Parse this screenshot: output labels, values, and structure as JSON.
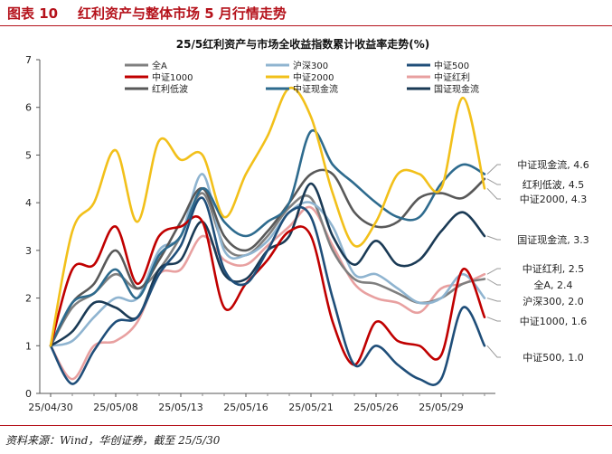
{
  "header": {
    "figure_number": "图表 10",
    "figure_title": "红利资产与整体市场 5 月行情走势"
  },
  "footer": {
    "source": "资料来源：Wind，华创证券，截至 25/5/30"
  },
  "colors": {
    "brand": "#b5121b",
    "series": [
      "#7f7f7f",
      "#8fb4d0",
      "#1f4e79",
      "#c00000",
      "#f2c01a",
      "#e8a0a0",
      "#595959",
      "#2e6b8e",
      "#1a3a55"
    ]
  },
  "chart_data": {
    "type": "line",
    "title": "25/5红利资产与市场全收益指数累计收益率走势(%)",
    "xlabel": "",
    "ylabel": "",
    "ylim": [
      0,
      7
    ],
    "yticks": [
      "0",
      "1",
      "2",
      "3",
      "4",
      "5",
      "6",
      "7"
    ],
    "xticks": [
      "25/04/30",
      "25/05/08",
      "25/05/13",
      "25/05/16",
      "25/05/21",
      "25/05/26",
      "25/05/29"
    ],
    "legend_position": "top",
    "series": [
      {
        "name": "全A",
        "end_label": "全A, 2.4",
        "x": [
          0,
          1,
          2,
          3,
          4,
          5,
          6,
          7,
          8,
          9,
          10,
          11,
          12,
          13,
          14,
          15,
          16,
          17,
          18,
          19,
          20
        ],
        "values": [
          1.0,
          1.8,
          2.1,
          2.5,
          2.2,
          2.6,
          3.3,
          4.2,
          3.1,
          2.9,
          3.3,
          3.9,
          4.1,
          3.0,
          2.4,
          2.3,
          2.1,
          1.9,
          2.0,
          2.3,
          2.4
        ]
      },
      {
        "name": "沪深300",
        "end_label": "沪深300, 2.0",
        "x": [
          0,
          1,
          2,
          3,
          4,
          5,
          6,
          7,
          8,
          9,
          10,
          11,
          12,
          13,
          14,
          15,
          16,
          17,
          18,
          19,
          20
        ],
        "values": [
          1.0,
          1.1,
          1.6,
          2.0,
          2.0,
          3.0,
          3.3,
          4.6,
          3.0,
          2.9,
          3.2,
          3.8,
          4.0,
          3.5,
          2.5,
          2.5,
          2.2,
          1.9,
          2.0,
          2.5,
          2.0
        ]
      },
      {
        "name": "中证500",
        "end_label": "中证500, 1.0",
        "x": [
          0,
          1,
          2,
          3,
          4,
          5,
          6,
          7,
          8,
          9,
          10,
          11,
          12,
          13,
          14,
          15,
          16,
          17,
          18,
          19,
          20
        ],
        "values": [
          1.0,
          0.2,
          0.9,
          1.5,
          1.6,
          2.5,
          3.1,
          4.1,
          2.6,
          2.3,
          3.0,
          3.8,
          3.7,
          2.0,
          0.6,
          1.0,
          0.6,
          0.3,
          0.3,
          1.8,
          1.0
        ]
      },
      {
        "name": "中证1000",
        "end_label": "中证1000, 1.6",
        "x": [
          0,
          1,
          2,
          3,
          4,
          5,
          6,
          7,
          8,
          9,
          10,
          11,
          12,
          13,
          14,
          15,
          16,
          17,
          18,
          19,
          20
        ],
        "values": [
          1.0,
          2.6,
          2.7,
          3.5,
          2.3,
          3.3,
          3.5,
          3.6,
          1.8,
          2.3,
          2.8,
          3.4,
          3.3,
          1.5,
          0.6,
          1.5,
          1.1,
          1.0,
          0.8,
          2.6,
          1.6
        ]
      },
      {
        "name": "中证2000",
        "end_label": "中证2000, 4.3",
        "x": [
          0,
          1,
          2,
          3,
          4,
          5,
          6,
          7,
          8,
          9,
          10,
          11,
          12,
          13,
          14,
          15,
          16,
          17,
          18,
          19,
          20
        ],
        "values": [
          1.0,
          3.4,
          4.0,
          5.1,
          3.6,
          5.3,
          4.9,
          5.0,
          3.7,
          4.6,
          5.4,
          6.4,
          5.8,
          4.2,
          3.1,
          3.6,
          4.6,
          4.6,
          4.3,
          6.2,
          4.3
        ]
      },
      {
        "name": "中证红利",
        "end_label": "中证红利, 2.5",
        "x": [
          0,
          1,
          2,
          3,
          4,
          5,
          6,
          7,
          8,
          9,
          10,
          11,
          12,
          13,
          14,
          15,
          16,
          17,
          18,
          19,
          20
        ],
        "values": [
          1.0,
          0.3,
          1.0,
          1.1,
          1.5,
          2.5,
          2.6,
          3.3,
          2.8,
          2.7,
          3.1,
          3.5,
          3.9,
          3.1,
          2.3,
          2.0,
          1.9,
          1.7,
          2.2,
          2.3,
          2.5
        ]
      },
      {
        "name": "红利低波",
        "end_label": "红利低波, 4.5",
        "x": [
          0,
          1,
          2,
          3,
          4,
          5,
          6,
          7,
          8,
          9,
          10,
          11,
          12,
          13,
          14,
          15,
          16,
          17,
          18,
          19,
          20
        ],
        "values": [
          1.0,
          1.9,
          2.3,
          3.0,
          2.2,
          2.8,
          3.6,
          4.3,
          3.3,
          3.0,
          3.4,
          4.0,
          4.6,
          4.6,
          3.8,
          3.5,
          3.6,
          4.1,
          4.2,
          4.1,
          4.5
        ]
      },
      {
        "name": "中证现金流",
        "end_label": "中证现金流, 4.6",
        "x": [
          0,
          1,
          2,
          3,
          4,
          5,
          6,
          7,
          8,
          9,
          10,
          11,
          12,
          13,
          14,
          15,
          16,
          17,
          18,
          19,
          20
        ],
        "values": [
          1.0,
          1.9,
          2.1,
          2.6,
          2.0,
          2.9,
          3.3,
          4.3,
          3.6,
          3.3,
          3.6,
          4.0,
          5.5,
          4.8,
          4.4,
          4.0,
          3.7,
          3.7,
          4.4,
          4.8,
          4.6
        ]
      },
      {
        "name": "国证现金流",
        "end_label": "国证现金流, 3.3",
        "x": [
          0,
          1,
          2,
          3,
          4,
          5,
          6,
          7,
          8,
          9,
          10,
          11,
          12,
          13,
          14,
          15,
          16,
          17,
          18,
          19,
          20
        ],
        "values": [
          1.0,
          1.3,
          1.9,
          1.8,
          1.6,
          2.6,
          2.8,
          3.6,
          2.5,
          2.4,
          3.0,
          3.3,
          4.4,
          3.3,
          2.7,
          3.2,
          2.7,
          2.8,
          3.4,
          3.8,
          3.3
        ]
      }
    ]
  }
}
